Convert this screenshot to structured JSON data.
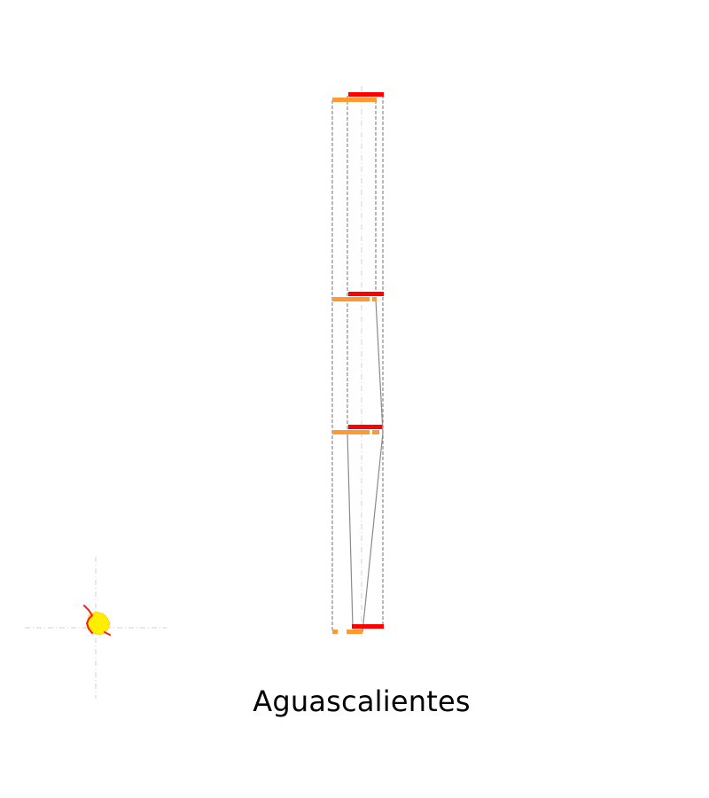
{
  "region_name": "Aguascalientes",
  "colors": {
    "primary_bar": "#ff0000",
    "secondary_bar": "#ff9933",
    "connector": "#8a8a8a",
    "guide": "#d9d9d9",
    "map_fill": "#ffee00",
    "map_outline": "#ff1a1a"
  }
}
